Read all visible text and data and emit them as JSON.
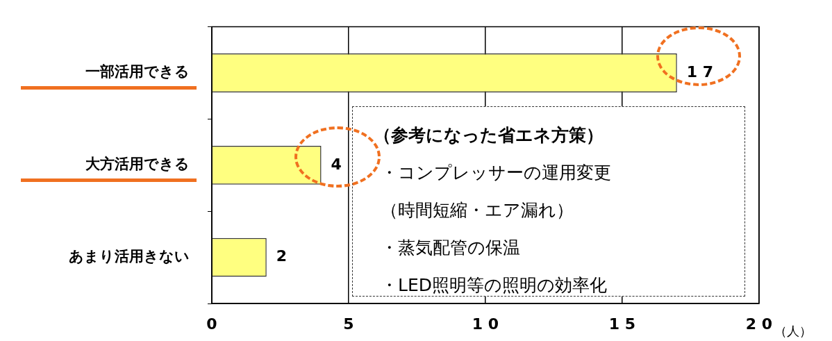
{
  "chart_data": {
    "type": "bar",
    "orientation": "horizontal",
    "categories": [
      "一部活用できる",
      "大方活用できる",
      "あまり活用きない"
    ],
    "values": [
      17,
      4,
      2
    ],
    "color": "#ffff80",
    "xlim": [
      0,
      20
    ],
    "xticks": [
      0,
      5,
      10,
      15,
      20
    ],
    "xlabel": "（人）",
    "grid": "x",
    "data_labels": true,
    "legend": false,
    "annotations": [
      "（参考になった省エネ方策）",
      "・コンプレッサーの運用変更",
      "（時間短縮・エア漏れ）",
      "・蒸気配管の保温",
      "・LED照明等の照明の効率化"
    ]
  }
}
